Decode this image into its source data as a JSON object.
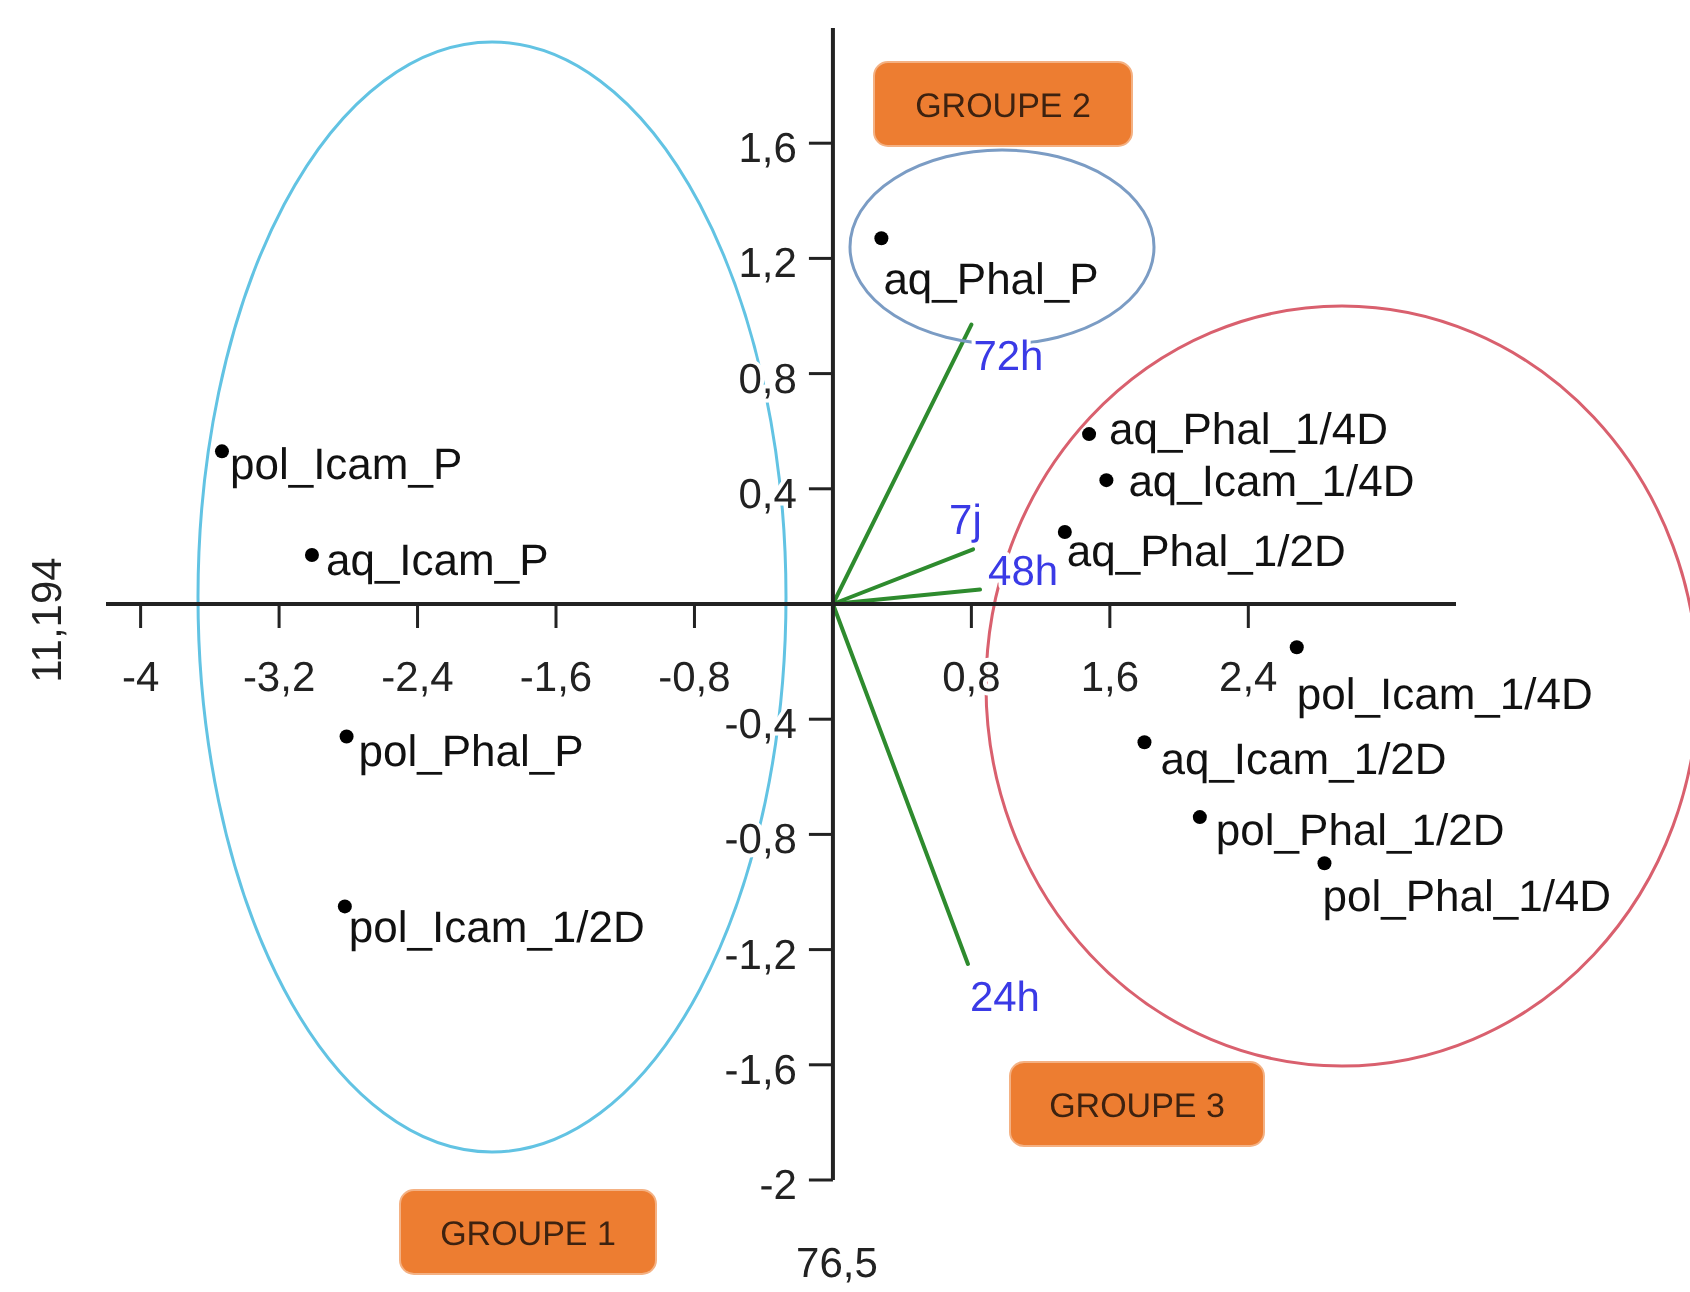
{
  "chart_data": {
    "type": "scatter",
    "xlabel": "76,5",
    "ylabel": "11,194",
    "marker": "circle",
    "xlim": [
      -4.2,
      3.6
    ],
    "xticks": [
      -4,
      {
        "value": -3.2,
        "label": "-3,2"
      },
      {
        "value": -2.4,
        "label": "-2,4"
      },
      {
        "value": -1.6,
        "label": "-1,6"
      },
      {
        "value": -0.8,
        "label": "-0,8"
      },
      {
        "value": 0.8,
        "label": "0,8"
      },
      {
        "value": 1.6,
        "label": "1,6"
      },
      {
        "value": 2.4,
        "label": "2,4"
      }
    ],
    "ylim": [
      -2,
      2
    ],
    "yticks": [
      -2,
      {
        "value": -1.6,
        "label": "-1,6"
      },
      {
        "value": -1.2,
        "label": "-1,2"
      },
      {
        "value": -0.8,
        "label": "-0,8"
      },
      {
        "value": -0.4,
        "label": "-0,4"
      },
      {
        "value": 0.4,
        "label": "0,4"
      },
      {
        "value": 0.8,
        "label": "0,8"
      },
      {
        "value": 1.2,
        "label": "1,2"
      },
      {
        "value": 1.6,
        "label": "1,6"
      }
    ],
    "series": [
      {
        "color": "#000000",
        "x": [
          -3.53,
          -3.01,
          -2.81,
          -2.82,
          0.28,
          1.48,
          1.58,
          1.34,
          2.68,
          1.8,
          2.12,
          2.84
        ],
        "values": [
          0.53,
          0.17,
          -0.46,
          -1.05,
          1.27,
          0.59,
          0.43,
          0.25,
          -0.15,
          -0.48,
          -0.74,
          -0.9
        ]
      },
      {
        "type": "line",
        "name": "72h",
        "color": "#2e8b2e",
        "marker": "none",
        "x": [
          0,
          0.8
        ],
        "values": [
          0,
          0.97
        ]
      },
      {
        "type": "line",
        "name": "7j",
        "color": "#2e8b2e",
        "marker": "none",
        "x": [
          0,
          0.81
        ],
        "values": [
          0,
          0.19
        ]
      },
      {
        "type": "line",
        "name": "48h",
        "color": "#2e8b2e",
        "marker": "none",
        "x": [
          0,
          0.85
        ],
        "values": [
          0,
          0.05
        ]
      },
      {
        "type": "line",
        "name": "24h",
        "color": "#2e8b2e",
        "marker": "none",
        "x": [
          0,
          0.78
        ],
        "values": [
          0,
          -1.25
        ]
      }
    ],
    "annotations": [
      {
        "text": "pol_Icam_P",
        "x": -3.53,
        "y": 0.53
      },
      {
        "text": "aq_Icam_P",
        "x": -3.01,
        "y": 0.17
      },
      {
        "text": "pol_Phal_P",
        "x": -2.81,
        "y": -0.46
      },
      {
        "text": "pol_Icam_1/2D",
        "x": -2.82,
        "y": -1.05
      },
      {
        "text": "aq_Phal_P",
        "x": 0.28,
        "y": 1.27
      },
      {
        "text": "aq_Phal_1/4D",
        "x": 1.48,
        "y": 0.59
      },
      {
        "text": "aq_Icam_1/4D",
        "x": 1.58,
        "y": 0.43
      },
      {
        "text": "aq_Phal_1/2D",
        "x": 1.34,
        "y": 0.25
      },
      {
        "text": "pol_Icam_1/4D",
        "x": 2.68,
        "y": -0.15
      },
      {
        "text": "aq_Icam_1/2D",
        "x": 1.8,
        "y": -0.48
      },
      {
        "text": "pol_Phal_1/2D",
        "x": 2.12,
        "y": -0.74
      },
      {
        "text": "pol_Phal_1/4D",
        "x": 2.84,
        "y": -0.9
      },
      "GROUPE 1",
      "GROUPE 2",
      "GROUPE 3"
    ]
  }
}
